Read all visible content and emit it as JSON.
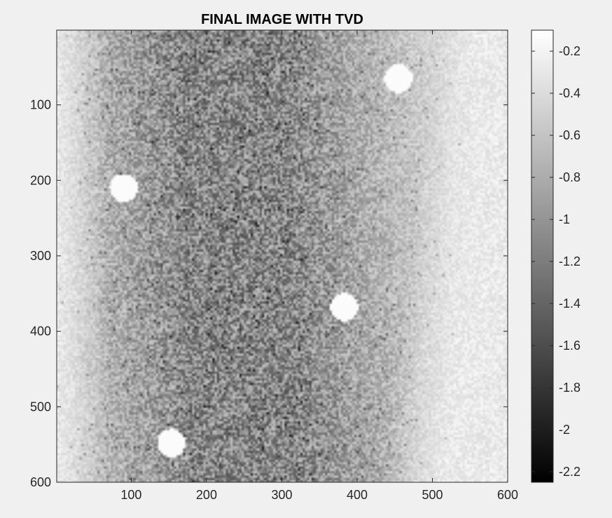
{
  "chart_data": {
    "type": "heatmap",
    "title": "FINAL IMAGE WITH TVD",
    "xlabel": "",
    "ylabel": "",
    "xlim": [
      1,
      600
    ],
    "ylim": [
      1,
      600
    ],
    "y_direction": "reverse",
    "x_ticks": [
      100,
      200,
      300,
      400,
      500,
      600
    ],
    "y_ticks": [
      100,
      200,
      300,
      400,
      500,
      600
    ],
    "colormap": "gray",
    "clim": [
      -2.25,
      -0.1
    ],
    "colorbar_ticks": [
      -0.2,
      -0.4,
      -0.6,
      -0.8,
      -1,
      -1.2,
      -1.4,
      -1.6,
      -1.8,
      -2,
      -2.2
    ],
    "grid": false,
    "description_regions": {
      "left_center_value_range": [
        -1.6,
        -0.6
      ],
      "right_edge_value_range": [
        -0.4,
        -0.15
      ]
    },
    "bright_spots": [
      {
        "x": 455,
        "y": 65
      },
      {
        "x": 90,
        "y": 210
      },
      {
        "x": 383,
        "y": 368
      },
      {
        "x": 153,
        "y": 548
      }
    ]
  }
}
